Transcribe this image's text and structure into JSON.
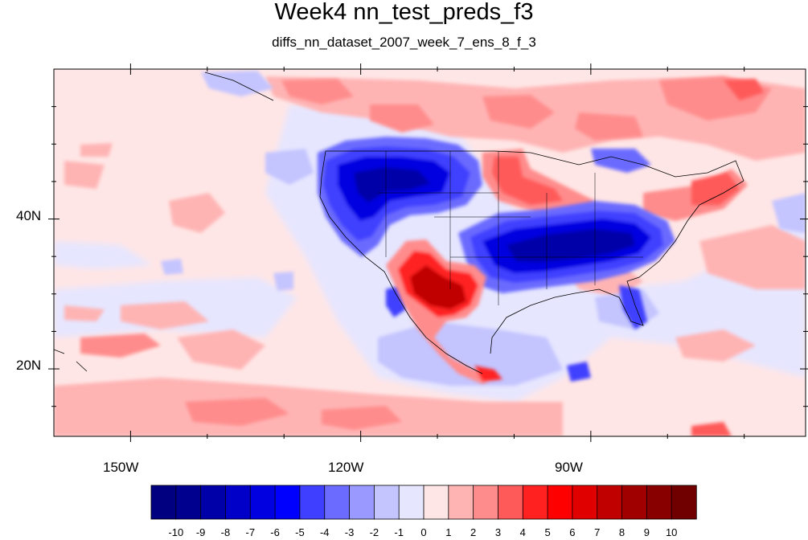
{
  "title": "Week4 nn_test_preds_f3",
  "subtitle": "diffs_nn_dataset_2007_week_7_ens_8_f_3",
  "map": {
    "lon_range": [
      -160,
      -62
    ],
    "lat_range": [
      11,
      60
    ],
    "lon_ticks": [
      {
        "value": -150,
        "label": "150W"
      },
      {
        "value": -120,
        "label": "120W"
      },
      {
        "value": -90,
        "label": "90W"
      }
    ],
    "lat_ticks": [
      {
        "value": 40,
        "label": "40N"
      },
      {
        "value": 20,
        "label": "20N"
      }
    ]
  },
  "colorbar": {
    "levels": [
      "-10",
      "-9",
      "-8",
      "-7",
      "-6",
      "-5",
      "-4",
      "-3",
      "-2",
      "-1",
      "0",
      "1",
      "2",
      "3",
      "4",
      "5",
      "6",
      "7",
      "8",
      "9",
      "10"
    ],
    "colors": [
      "#000080",
      "#00008f",
      "#0000a8",
      "#0000c8",
      "#0000e0",
      "#0000ff",
      "#3f3fff",
      "#6b6bff",
      "#9999ff",
      "#c4c4ff",
      "#e6e6ff",
      "#ffe6e6",
      "#ffb4b4",
      "#ff8c8c",
      "#ff5a5a",
      "#ff2020",
      "#ff0000",
      "#e00000",
      "#c00000",
      "#a00000",
      "#880000",
      "#700000"
    ]
  },
  "colors": {
    "background_light_blue": "#e6e6ff",
    "background_light_pink": "#ffe6e6"
  }
}
